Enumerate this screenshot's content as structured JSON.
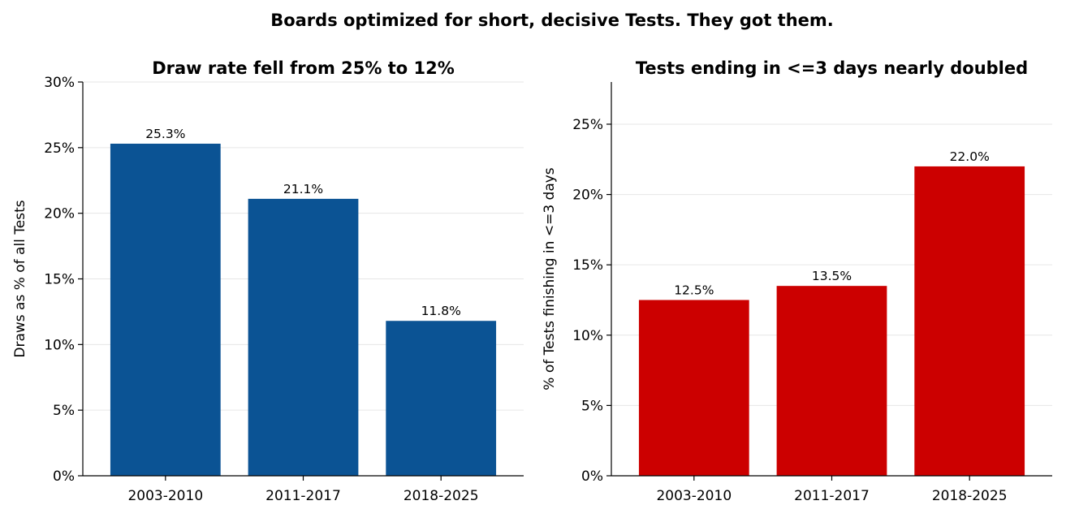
{
  "suptitle": "Boards optimized for short, decisive Tests. They got them.",
  "chart_data": [
    {
      "type": "bar",
      "title": "Draw rate fell from 25% to 12%",
      "xlabel": "",
      "ylabel": "Draws as % of all Tests",
      "categories": [
        "2003-2010",
        "2011-2017",
        "2018-2025"
      ],
      "values": [
        25.3,
        21.1,
        11.8
      ],
      "data_labels": [
        "25.3%",
        "21.1%",
        "11.8%"
      ],
      "ylim": [
        0,
        30
      ],
      "yticks": [
        0,
        5,
        10,
        15,
        20,
        25,
        30
      ],
      "ytick_labels": [
        "0%",
        "5%",
        "10%",
        "15%",
        "20%",
        "25%",
        "30%"
      ],
      "color": "#0b5394",
      "grid": true
    },
    {
      "type": "bar",
      "title": "Tests ending in <=3 days nearly doubled",
      "xlabel": "",
      "ylabel": "% of Tests finishing in <=3 days",
      "categories": [
        "2003-2010",
        "2011-2017",
        "2018-2025"
      ],
      "values": [
        12.5,
        13.5,
        22.0
      ],
      "data_labels": [
        "12.5%",
        "13.5%",
        "22.0%"
      ],
      "ylim": [
        0,
        28
      ],
      "yticks": [
        0,
        5,
        10,
        15,
        20,
        25
      ],
      "ytick_labels": [
        "0%",
        "5%",
        "10%",
        "15%",
        "20%",
        "25%"
      ],
      "color": "#cc0000",
      "grid": true
    }
  ]
}
